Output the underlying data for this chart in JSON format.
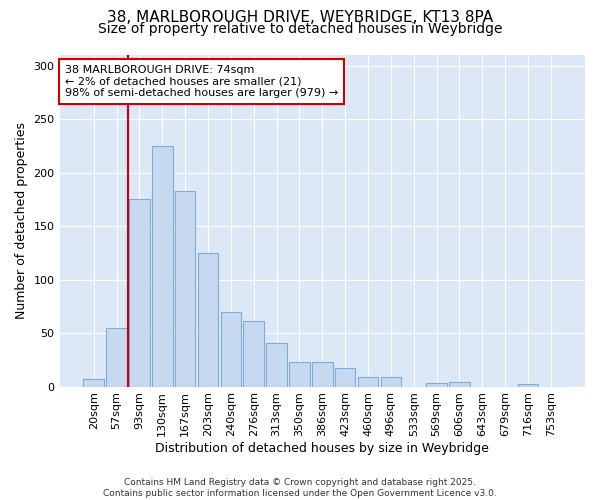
{
  "title_line1": "38, MARLBOROUGH DRIVE, WEYBRIDGE, KT13 8PA",
  "title_line2": "Size of property relative to detached houses in Weybridge",
  "xlabel": "Distribution of detached houses by size in Weybridge",
  "ylabel": "Number of detached properties",
  "bar_labels": [
    "20sqm",
    "57sqm",
    "93sqm",
    "130sqm",
    "167sqm",
    "203sqm",
    "240sqm",
    "276sqm",
    "313sqm",
    "350sqm",
    "386sqm",
    "423sqm",
    "460sqm",
    "496sqm",
    "533sqm",
    "569sqm",
    "606sqm",
    "643sqm",
    "679sqm",
    "716sqm",
    "753sqm"
  ],
  "bar_values": [
    7,
    55,
    175,
    225,
    183,
    125,
    70,
    61,
    41,
    23,
    23,
    17,
    9,
    9,
    0,
    3,
    4,
    0,
    0,
    2,
    0
  ],
  "bar_color": "#c6d9f0",
  "bar_edge_color": "#7bafd4",
  "plot_bg_color": "#dce8f5",
  "fig_bg_color": "#ffffff",
  "vline_x": 1.5,
  "vline_color": "#cc0000",
  "annotation_text": "38 MARLBOROUGH DRIVE: 74sqm\n← 2% of detached houses are smaller (21)\n98% of semi-detached houses are larger (979) →",
  "annotation_box_facecolor": "#ffffff",
  "annotation_box_edgecolor": "#cc0000",
  "footnote": "Contains HM Land Registry data © Crown copyright and database right 2025.\nContains public sector information licensed under the Open Government Licence v3.0.",
  "ylim": [
    0,
    310
  ],
  "yticks": [
    0,
    50,
    100,
    150,
    200,
    250,
    300
  ],
  "title1_fontsize": 11,
  "title2_fontsize": 10,
  "xlabel_fontsize": 9,
  "ylabel_fontsize": 9,
  "tick_fontsize": 8,
  "annot_fontsize": 8,
  "footnote_fontsize": 6.5
}
